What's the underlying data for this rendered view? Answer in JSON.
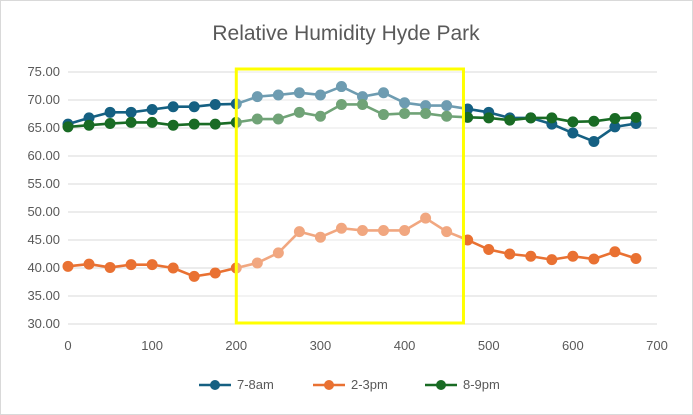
{
  "chart_data": {
    "type": "line",
    "title": "Relative Humidity Hyde Park",
    "xlabel": "",
    "ylabel": "",
    "xlim": [
      0,
      700
    ],
    "ylim": [
      30,
      75
    ],
    "x_ticks": [
      "0",
      "100",
      "200",
      "300",
      "400",
      "500",
      "600",
      "700"
    ],
    "y_ticks": [
      "30.00",
      "35.00",
      "40.00",
      "45.00",
      "50.00",
      "55.00",
      "60.00",
      "65.00",
      "70.00",
      "75.00"
    ],
    "grid": "horizontal",
    "legend_position": "bottom",
    "highlight_range": [
      200,
      470
    ],
    "highlight_border_color": "#ffff00",
    "x": [
      0,
      25,
      50,
      75,
      100,
      125,
      150,
      175,
      200,
      225,
      250,
      275,
      300,
      325,
      350,
      375,
      400,
      425,
      450,
      475,
      500,
      525,
      550,
      575,
      600,
      625,
      650,
      675
    ],
    "series": [
      {
        "name": "7-8am",
        "color": "#156082",
        "values": [
          65.7,
          66.8,
          67.8,
          67.8,
          68.3,
          68.8,
          68.8,
          69.2,
          69.3,
          70.6,
          70.9,
          71.3,
          70.9,
          72.4,
          70.6,
          71.3,
          69.5,
          69.0,
          69.0,
          68.4,
          67.8,
          66.8,
          66.8,
          65.7,
          64.1,
          62.6,
          65.2,
          65.8
        ]
      },
      {
        "name": "2-3pm",
        "color": "#e97132",
        "values": [
          40.3,
          40.7,
          40.1,
          40.6,
          40.6,
          40.0,
          38.5,
          39.1,
          40.0,
          40.9,
          42.7,
          46.5,
          45.5,
          47.1,
          46.7,
          46.7,
          46.7,
          48.9,
          46.5,
          45.0,
          43.3,
          42.5,
          42.1,
          41.5,
          42.1,
          41.6,
          42.9,
          41.7
        ]
      },
      {
        "name": "8-9pm",
        "color": "#196b24",
        "values": [
          65.2,
          65.5,
          65.8,
          66.0,
          66.0,
          65.5,
          65.7,
          65.7,
          66.0,
          66.6,
          66.6,
          67.8,
          67.1,
          69.2,
          69.2,
          67.4,
          67.6,
          67.6,
          67.1,
          66.9,
          66.8,
          66.4,
          66.8,
          66.8,
          66.1,
          66.2,
          66.7,
          66.9
        ]
      }
    ]
  }
}
